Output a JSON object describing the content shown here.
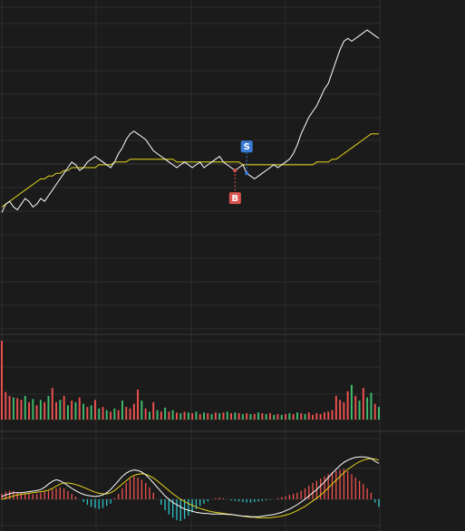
{
  "colors": {
    "background": "#1b1b1b",
    "grid": "#2e2e2e",
    "price_line": "#ffffff",
    "avg_line": "#e6d619",
    "up": "#f0524f",
    "down": "#3fbf6e",
    "macd_neg": "#2ec4c9",
    "dif_line": "#ffffff",
    "dea_line": "#e6d619",
    "buy_marker": "#d9534f",
    "sell_marker": "#3a7bd5"
  },
  "markers": {
    "buy": {
      "label": "B",
      "index": 60
    },
    "sell": {
      "label": "S",
      "index": 63
    }
  },
  "chart_data": [
    {
      "type": "line",
      "name": "intraday-price",
      "ylim": [
        0,
        100
      ],
      "series": [
        {
          "key": "price",
          "values": [
            34,
            37,
            38,
            36,
            35,
            37,
            39,
            38,
            36,
            37,
            39,
            38,
            40,
            42,
            44,
            46,
            48,
            50,
            52,
            51,
            49,
            50,
            52,
            53,
            54,
            53,
            52,
            51,
            50,
            52,
            55,
            57,
            60,
            62,
            63,
            62,
            61,
            60,
            58,
            56,
            55,
            54,
            53,
            52,
            51,
            50,
            51,
            52,
            51,
            50,
            51,
            52,
            50,
            51,
            52,
            53,
            54,
            52,
            51,
            50,
            49,
            50,
            51,
            48,
            47,
            46,
            47,
            48,
            49,
            50,
            51,
            50,
            51,
            52,
            53,
            55,
            58,
            62,
            65,
            68,
            70,
            72,
            75,
            78,
            80,
            84,
            88,
            92,
            95,
            96,
            95,
            96,
            97,
            98,
            99,
            98,
            97,
            96
          ]
        },
        {
          "key": "avg",
          "values": [
            36,
            37,
            38,
            39,
            40,
            41,
            42,
            43,
            44,
            45,
            46,
            46,
            47,
            47,
            48,
            48,
            49,
            49,
            50,
            50,
            50,
            50,
            50,
            50,
            50,
            51,
            51,
            51,
            51,
            52,
            52,
            52,
            52,
            53,
            53,
            53,
            53,
            53,
            53,
            53,
            53,
            53,
            53,
            53,
            53,
            52,
            52,
            52,
            52,
            52,
            52,
            52,
            52,
            52,
            52,
            52,
            52,
            52,
            52,
            52,
            52,
            52,
            51,
            51,
            51,
            51,
            51,
            51,
            51,
            51,
            51,
            51,
            51,
            51,
            51,
            51,
            51,
            51,
            51,
            51,
            51,
            52,
            52,
            52,
            52,
            53,
            53,
            54,
            55,
            56,
            57,
            58,
            59,
            60,
            61,
            62,
            62,
            62
          ]
        }
      ]
    },
    {
      "type": "bar",
      "name": "volume",
      "ylim": [
        0,
        100
      ],
      "values": [
        100,
        35,
        30,
        28,
        27,
        25,
        30,
        22,
        26,
        18,
        25,
        22,
        30,
        40,
        22,
        25,
        30,
        18,
        24,
        22,
        28,
        20,
        16,
        18,
        25,
        14,
        16,
        12,
        10,
        14,
        12,
        24,
        16,
        14,
        20,
        38,
        24,
        14,
        10,
        22,
        12,
        10,
        15,
        10,
        12,
        9,
        8,
        10,
        9,
        8,
        10,
        7,
        9,
        8,
        7,
        9,
        8,
        9,
        10,
        8,
        9,
        8,
        7,
        8,
        7,
        7,
        9,
        8,
        7,
        8,
        6,
        7,
        6,
        7,
        8,
        7,
        9,
        8,
        7,
        9,
        6,
        8,
        7,
        9,
        10,
        12,
        30,
        25,
        22,
        36,
        44,
        30,
        24,
        40,
        28,
        34,
        20,
        16
      ],
      "up_flags": [
        1,
        1,
        1,
        0,
        1,
        1,
        0,
        1,
        0,
        1,
        0,
        1,
        0,
        1,
        1,
        0,
        1,
        0,
        1,
        0,
        1,
        0,
        1,
        0,
        1,
        0,
        1,
        0,
        1,
        0,
        1,
        0,
        1,
        1,
        1,
        1,
        0,
        1,
        0,
        1,
        0,
        1,
        0,
        1,
        0,
        1,
        0,
        1,
        0,
        1,
        0,
        1,
        0,
        1,
        0,
        1,
        0,
        1,
        0,
        1,
        0,
        1,
        0,
        1,
        0,
        1,
        0,
        1,
        0,
        1,
        0,
        1,
        0,
        1,
        0,
        1,
        0,
        1,
        0,
        1,
        1,
        1,
        1,
        1,
        1,
        1,
        1,
        1,
        1,
        1,
        0,
        1,
        0,
        1,
        0,
        0,
        1,
        0
      ]
    },
    {
      "type": "bar",
      "name": "macd",
      "ylim": [
        -1,
        1
      ],
      "histogram": [
        0.1,
        0.14,
        0.16,
        0.15,
        0.13,
        0.12,
        0.11,
        0.1,
        0.09,
        0.1,
        0.12,
        0.14,
        0.16,
        0.18,
        0.2,
        0.22,
        0.2,
        0.15,
        0.1,
        0.05,
        0.0,
        -0.05,
        -0.1,
        -0.14,
        -0.16,
        -0.18,
        -0.16,
        -0.12,
        -0.08,
        0.02,
        0.1,
        0.2,
        0.3,
        0.38,
        0.42,
        0.4,
        0.36,
        0.3,
        0.22,
        0.12,
        0.0,
        -0.1,
        -0.2,
        -0.28,
        -0.34,
        -0.38,
        -0.4,
        -0.36,
        -0.3,
        -0.24,
        -0.18,
        -0.12,
        -0.08,
        -0.04,
        0.0,
        0.02,
        0.03,
        0.02,
        0.0,
        -0.02,
        -0.03,
        -0.04,
        -0.05,
        -0.06,
        -0.06,
        -0.05,
        -0.04,
        -0.03,
        -0.02,
        -0.01,
        0.0,
        0.02,
        0.04,
        0.06,
        0.08,
        0.1,
        0.12,
        0.16,
        0.2,
        0.25,
        0.3,
        0.34,
        0.38,
        0.42,
        0.46,
        0.5,
        0.52,
        0.54,
        0.56,
        0.52,
        0.46,
        0.4,
        0.34,
        0.28,
        0.2,
        0.12,
        -0.06,
        -0.14
      ],
      "dif": [
        0.05,
        0.08,
        0.1,
        0.12,
        0.12,
        0.12,
        0.13,
        0.14,
        0.15,
        0.16,
        0.18,
        0.22,
        0.28,
        0.33,
        0.36,
        0.34,
        0.3,
        0.25,
        0.2,
        0.16,
        0.12,
        0.09,
        0.07,
        0.06,
        0.05,
        0.06,
        0.08,
        0.12,
        0.18,
        0.26,
        0.34,
        0.42,
        0.48,
        0.52,
        0.54,
        0.53,
        0.5,
        0.45,
        0.38,
        0.3,
        0.22,
        0.14,
        0.06,
        0.0,
        -0.06,
        -0.1,
        -0.14,
        -0.18,
        -0.2,
        -0.22,
        -0.24,
        -0.25,
        -0.26,
        -0.26,
        -0.27,
        -0.27,
        -0.27,
        -0.27,
        -0.28,
        -0.28,
        -0.29,
        -0.3,
        -0.31,
        -0.31,
        -0.32,
        -0.32,
        -0.32,
        -0.31,
        -0.3,
        -0.29,
        -0.28,
        -0.26,
        -0.24,
        -0.21,
        -0.18,
        -0.14,
        -0.1,
        -0.05,
        0.0,
        0.06,
        0.12,
        0.18,
        0.25,
        0.32,
        0.4,
        0.48,
        0.55,
        0.62,
        0.68,
        0.72,
        0.75,
        0.77,
        0.78,
        0.78,
        0.77,
        0.75,
        0.7,
        0.66
      ],
      "dea": [
        0.0,
        0.02,
        0.04,
        0.06,
        0.08,
        0.09,
        0.1,
        0.11,
        0.12,
        0.13,
        0.14,
        0.15,
        0.17,
        0.2,
        0.24,
        0.28,
        0.3,
        0.3,
        0.29,
        0.27,
        0.25,
        0.22,
        0.19,
        0.16,
        0.13,
        0.11,
        0.1,
        0.1,
        0.12,
        0.16,
        0.22,
        0.28,
        0.34,
        0.4,
        0.44,
        0.46,
        0.47,
        0.46,
        0.43,
        0.39,
        0.34,
        0.28,
        0.22,
        0.16,
        0.1,
        0.05,
        0.0,
        -0.04,
        -0.08,
        -0.11,
        -0.14,
        -0.17,
        -0.19,
        -0.21,
        -0.23,
        -0.24,
        -0.25,
        -0.26,
        -0.27,
        -0.28,
        -0.29,
        -0.3,
        -0.31,
        -0.32,
        -0.33,
        -0.33,
        -0.34,
        -0.34,
        -0.34,
        -0.34,
        -0.33,
        -0.32,
        -0.31,
        -0.29,
        -0.27,
        -0.24,
        -0.21,
        -0.17,
        -0.13,
        -0.08,
        -0.03,
        0.02,
        0.08,
        0.14,
        0.21,
        0.28,
        0.35,
        0.42,
        0.49,
        0.55,
        0.6,
        0.65,
        0.69,
        0.72,
        0.74,
        0.75,
        0.74,
        0.72
      ]
    }
  ]
}
